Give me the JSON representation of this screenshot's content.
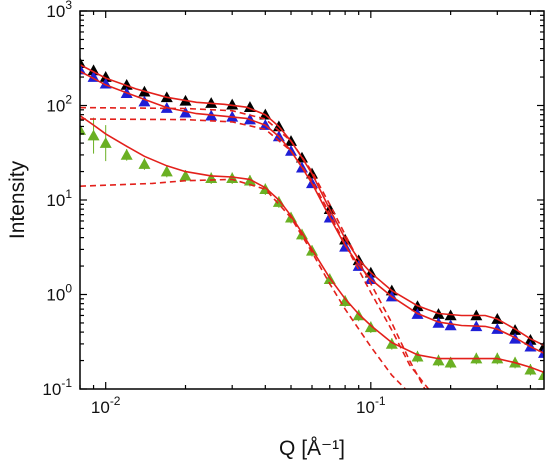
{
  "chart_data": {
    "type": "scatter",
    "x_scale": "log",
    "y_scale": "log",
    "xlim": [
      0.008,
      0.45
    ],
    "ylim": [
      0.1,
      1000
    ],
    "xlabel": "Q [Å⁻¹]",
    "ylabel": "Intensity",
    "x_ticks": [
      {
        "value": 0.01,
        "base": "10",
        "exp": "-2"
      },
      {
        "value": 0.1,
        "base": "10",
        "exp": "-1"
      }
    ],
    "y_ticks": [
      {
        "value": 0.1,
        "base": "10",
        "exp": "-1"
      },
      {
        "value": 1,
        "base": "10",
        "exp": "0"
      },
      {
        "value": 10,
        "base": "10",
        "exp": "1"
      },
      {
        "value": 100,
        "base": "10",
        "exp": "2"
      },
      {
        "value": 1000,
        "base": "10",
        "exp": "3"
      }
    ],
    "grid": false,
    "legend": "none",
    "series": [
      {
        "marker": "triangle-up",
        "color": "#000000",
        "points": [
          [
            0.008,
            280
          ],
          [
            0.009,
            235
          ],
          [
            0.01,
            200
          ],
          [
            0.012,
            165
          ],
          [
            0.014,
            140
          ],
          [
            0.017,
            122
          ],
          [
            0.02,
            112
          ],
          [
            0.025,
            106
          ],
          [
            0.03,
            102
          ],
          [
            0.035,
            96
          ],
          [
            0.04,
            80
          ],
          [
            0.045,
            60
          ],
          [
            0.05,
            42
          ],
          [
            0.055,
            28
          ],
          [
            0.06,
            19
          ],
          [
            0.07,
            8
          ],
          [
            0.08,
            3.8
          ],
          [
            0.09,
            2.3
          ],
          [
            0.1,
            1.7
          ],
          [
            0.12,
            1.1
          ],
          [
            0.15,
            0.75
          ],
          [
            0.18,
            0.62
          ],
          [
            0.2,
            0.6
          ],
          [
            0.25,
            0.6
          ],
          [
            0.3,
            0.55
          ],
          [
            0.35,
            0.42
          ],
          [
            0.4,
            0.33
          ],
          [
            0.45,
            0.28
          ]
        ]
      },
      {
        "marker": "triangle-up",
        "color": "#1f1fd6",
        "points": [
          [
            0.008,
            240
          ],
          [
            0.009,
            200
          ],
          [
            0.01,
            170
          ],
          [
            0.012,
            135
          ],
          [
            0.014,
            110
          ],
          [
            0.017,
            94
          ],
          [
            0.02,
            84
          ],
          [
            0.025,
            78
          ],
          [
            0.03,
            76
          ],
          [
            0.035,
            71
          ],
          [
            0.04,
            62
          ],
          [
            0.045,
            47
          ],
          [
            0.05,
            33
          ],
          [
            0.055,
            22
          ],
          [
            0.06,
            15
          ],
          [
            0.07,
            6.5
          ],
          [
            0.08,
            3.2
          ],
          [
            0.09,
            2.0
          ],
          [
            0.1,
            1.45
          ],
          [
            0.12,
            0.95
          ],
          [
            0.15,
            0.62
          ],
          [
            0.18,
            0.5
          ],
          [
            0.2,
            0.47
          ],
          [
            0.25,
            0.46
          ],
          [
            0.3,
            0.43
          ],
          [
            0.35,
            0.34
          ],
          [
            0.4,
            0.28
          ],
          [
            0.45,
            0.24
          ]
        ]
      },
      {
        "marker": "triangle-up",
        "color": "#6ab023",
        "error_bars": true,
        "points": [
          [
            0.008,
            55
          ],
          [
            0.009,
            48
          ],
          [
            0.01,
            40
          ],
          [
            0.012,
            30
          ],
          [
            0.014,
            24
          ],
          [
            0.017,
            20
          ],
          [
            0.02,
            18
          ],
          [
            0.025,
            17
          ],
          [
            0.03,
            17
          ],
          [
            0.035,
            16
          ],
          [
            0.04,
            13
          ],
          [
            0.045,
            9.5
          ],
          [
            0.05,
            6.5
          ],
          [
            0.055,
            4.3
          ],
          [
            0.06,
            2.9
          ],
          [
            0.07,
            1.45
          ],
          [
            0.08,
            0.85
          ],
          [
            0.09,
            0.6
          ],
          [
            0.1,
            0.45
          ],
          [
            0.12,
            0.3
          ],
          [
            0.15,
            0.22
          ],
          [
            0.18,
            0.2
          ],
          [
            0.2,
            0.19
          ],
          [
            0.25,
            0.21
          ],
          [
            0.3,
            0.21
          ],
          [
            0.35,
            0.19
          ],
          [
            0.4,
            0.16
          ],
          [
            0.45,
            0.14
          ]
        ]
      }
    ],
    "fits": [
      {
        "style": "solid",
        "color": "#e3201b",
        "points": [
          [
            0.008,
            270
          ],
          [
            0.01,
            195
          ],
          [
            0.013,
            150
          ],
          [
            0.017,
            122
          ],
          [
            0.022,
            108
          ],
          [
            0.028,
            103
          ],
          [
            0.034,
            96
          ],
          [
            0.04,
            80
          ],
          [
            0.045,
            60
          ],
          [
            0.05,
            42
          ],
          [
            0.055,
            28
          ],
          [
            0.06,
            19
          ],
          [
            0.07,
            8
          ],
          [
            0.08,
            3.9
          ],
          [
            0.09,
            2.35
          ],
          [
            0.1,
            1.7
          ],
          [
            0.12,
            1.1
          ],
          [
            0.15,
            0.76
          ],
          [
            0.18,
            0.63
          ],
          [
            0.22,
            0.6
          ],
          [
            0.27,
            0.6
          ],
          [
            0.3,
            0.55
          ],
          [
            0.35,
            0.43
          ],
          [
            0.4,
            0.34
          ],
          [
            0.45,
            0.29
          ]
        ]
      },
      {
        "style": "solid",
        "color": "#e3201b",
        "points": [
          [
            0.008,
            230
          ],
          [
            0.01,
            165
          ],
          [
            0.013,
            125
          ],
          [
            0.017,
            95
          ],
          [
            0.022,
            82
          ],
          [
            0.028,
            77
          ],
          [
            0.034,
            73
          ],
          [
            0.04,
            62
          ],
          [
            0.045,
            47
          ],
          [
            0.05,
            33
          ],
          [
            0.055,
            22
          ],
          [
            0.06,
            15
          ],
          [
            0.07,
            6.6
          ],
          [
            0.08,
            3.3
          ],
          [
            0.09,
            2.05
          ],
          [
            0.1,
            1.45
          ],
          [
            0.12,
            0.95
          ],
          [
            0.15,
            0.63
          ],
          [
            0.18,
            0.51
          ],
          [
            0.22,
            0.47
          ],
          [
            0.27,
            0.46
          ],
          [
            0.3,
            0.43
          ],
          [
            0.35,
            0.35
          ],
          [
            0.4,
            0.28
          ],
          [
            0.45,
            0.24
          ]
        ]
      },
      {
        "style": "solid",
        "color": "#e3201b",
        "points": [
          [
            0.008,
            78
          ],
          [
            0.009,
            62
          ],
          [
            0.01,
            50
          ],
          [
            0.012,
            37
          ],
          [
            0.014,
            29
          ],
          [
            0.017,
            23
          ],
          [
            0.02,
            20
          ],
          [
            0.025,
            18
          ],
          [
            0.03,
            17.5
          ],
          [
            0.035,
            16.5
          ],
          [
            0.04,
            13.5
          ],
          [
            0.045,
            10
          ],
          [
            0.05,
            6.8
          ],
          [
            0.055,
            4.5
          ],
          [
            0.06,
            3.0
          ],
          [
            0.07,
            1.5
          ],
          [
            0.08,
            0.9
          ],
          [
            0.09,
            0.62
          ],
          [
            0.1,
            0.47
          ],
          [
            0.12,
            0.31
          ],
          [
            0.15,
            0.23
          ],
          [
            0.18,
            0.21
          ],
          [
            0.22,
            0.21
          ],
          [
            0.27,
            0.21
          ],
          [
            0.3,
            0.21
          ],
          [
            0.35,
            0.19
          ],
          [
            0.4,
            0.17
          ],
          [
            0.45,
            0.15
          ]
        ]
      },
      {
        "style": "dashed",
        "color": "#e3201b",
        "points": [
          [
            0.008,
            95
          ],
          [
            0.02,
            93
          ],
          [
            0.03,
            88
          ],
          [
            0.04,
            72
          ],
          [
            0.05,
            42
          ],
          [
            0.06,
            20
          ],
          [
            0.07,
            9
          ],
          [
            0.08,
            4.3
          ],
          [
            0.1,
            1.3
          ],
          [
            0.12,
            0.5
          ],
          [
            0.14,
            0.2
          ],
          [
            0.16,
            0.1
          ]
        ]
      },
      {
        "style": "dashed",
        "color": "#e3201b",
        "points": [
          [
            0.008,
            72
          ],
          [
            0.02,
            71
          ],
          [
            0.03,
            67
          ],
          [
            0.04,
            56
          ],
          [
            0.05,
            33
          ],
          [
            0.06,
            16
          ],
          [
            0.07,
            7.2
          ],
          [
            0.08,
            3.4
          ],
          [
            0.1,
            1.05
          ],
          [
            0.12,
            0.42
          ],
          [
            0.14,
            0.18
          ],
          [
            0.165,
            0.1
          ]
        ]
      },
      {
        "style": "dashed",
        "color": "#e3201b",
        "points": [
          [
            0.008,
            14
          ],
          [
            0.015,
            15
          ],
          [
            0.02,
            16
          ],
          [
            0.03,
            16.5
          ],
          [
            0.04,
            13
          ],
          [
            0.05,
            6.5
          ],
          [
            0.06,
            2.8
          ],
          [
            0.07,
            1.3
          ],
          [
            0.08,
            0.7
          ],
          [
            0.1,
            0.28
          ],
          [
            0.12,
            0.14
          ],
          [
            0.135,
            0.1
          ]
        ]
      }
    ]
  }
}
